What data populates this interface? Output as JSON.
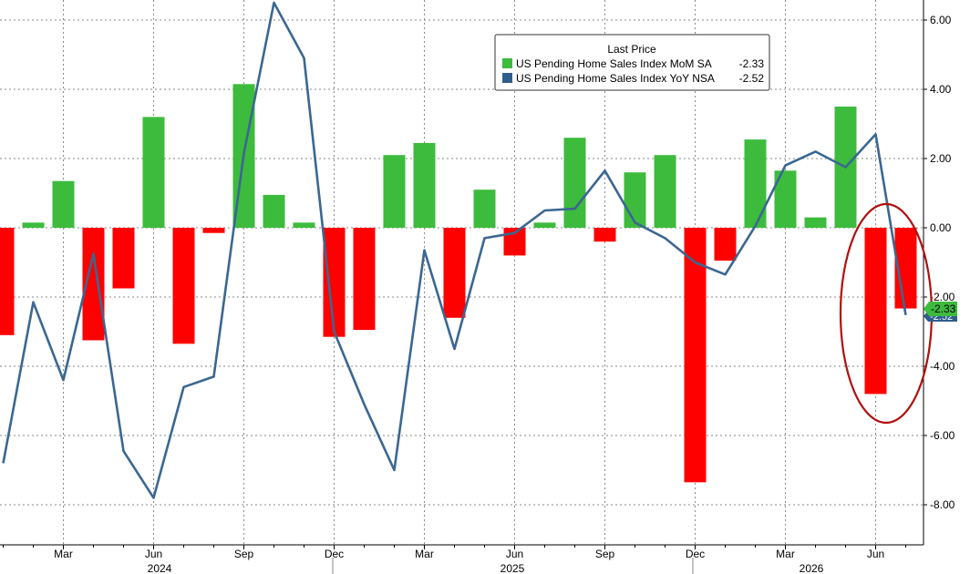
{
  "legend": {
    "title": "Last Price",
    "items": [
      {
        "label": "US Pending Home Sales Index MoM SA",
        "value": "-2.33",
        "color": "#3dbb3d"
      },
      {
        "label": "US Pending Home Sales Index YoY NSA",
        "value": "-2.52",
        "color": "#2e5e8e"
      }
    ]
  },
  "last_value_tags": {
    "mom": "-2.33",
    "yoy": "-2.52"
  },
  "colors": {
    "positive_bar": "#3dbb3d",
    "negative_bar": "#ff0000",
    "line": "#3b6791",
    "grid": "#8a8a8a",
    "axis": "#000000",
    "highlight_ellipse": "#b01010"
  },
  "chart_data": {
    "type": "bar",
    "title": "",
    "xlabel": "",
    "ylabel": "",
    "ylim": [
      -9.3,
      6.6
    ],
    "grid": true,
    "legend_position": "top-center",
    "y_axis_side": "right",
    "y_tick_labels": [
      "6.00",
      "4.00",
      "2.00",
      "0.00",
      "-2.00",
      "-4.00",
      "-6.00",
      "-8.00"
    ],
    "y_ticks": [
      6,
      4,
      2,
      0,
      -2,
      -4,
      -6,
      -8
    ],
    "x_tick_labels": [
      "Mar",
      "Jun",
      "Sep",
      "Dec",
      "Mar",
      "Jun",
      "Sep",
      "Dec",
      "Mar",
      "Jun"
    ],
    "x_year_labels": [
      "2024",
      "2025",
      "2026"
    ],
    "categories": [
      "Jan 2024",
      "Feb 2024",
      "Mar 2024",
      "Apr 2024",
      "May 2024",
      "Jun 2024",
      "Jul 2024",
      "Aug 2024",
      "Sep 2024",
      "Oct 2024",
      "Nov 2024",
      "Dec 2024",
      "Jan 2025",
      "Feb 2025",
      "Mar 2025",
      "Apr 2025",
      "May 2025",
      "Jun 2025",
      "Jul 2025",
      "Aug 2025",
      "Sep 2025",
      "Oct 2025",
      "Nov 2025",
      "Dec 2025",
      "Jan 2026",
      "Feb 2026",
      "Mar 2026",
      "Apr 2026",
      "May 2026",
      "Jun 2026",
      "Jul 2026"
    ],
    "series": [
      {
        "name": "US Pending Home Sales Index MoM SA",
        "type": "bar",
        "values": [
          -3.1,
          0.15,
          1.35,
          -3.25,
          -1.75,
          3.2,
          -3.35,
          -0.15,
          4.15,
          0.95,
          0.15,
          -3.15,
          -2.95,
          2.1,
          2.45,
          -2.6,
          1.1,
          -0.8,
          0.15,
          2.6,
          -0.4,
          1.6,
          2.1,
          -7.35,
          -0.95,
          2.55,
          1.65,
          0.3,
          3.5,
          -4.8,
          -2.33
        ]
      },
      {
        "name": "US Pending Home Sales Index YoY NSA",
        "type": "line",
        "values": [
          -6.8,
          -2.15,
          -4.4,
          -0.75,
          -6.45,
          -7.8,
          -4.6,
          -4.3,
          2.15,
          6.5,
          4.9,
          -3.0,
          -5.1,
          -7.0,
          -0.65,
          -3.5,
          -0.3,
          -0.15,
          0.5,
          0.55,
          1.65,
          0.15,
          -0.3,
          -1.0,
          -1.35,
          0.05,
          1.8,
          2.2,
          1.75,
          2.7,
          -2.52
        ]
      }
    ]
  }
}
